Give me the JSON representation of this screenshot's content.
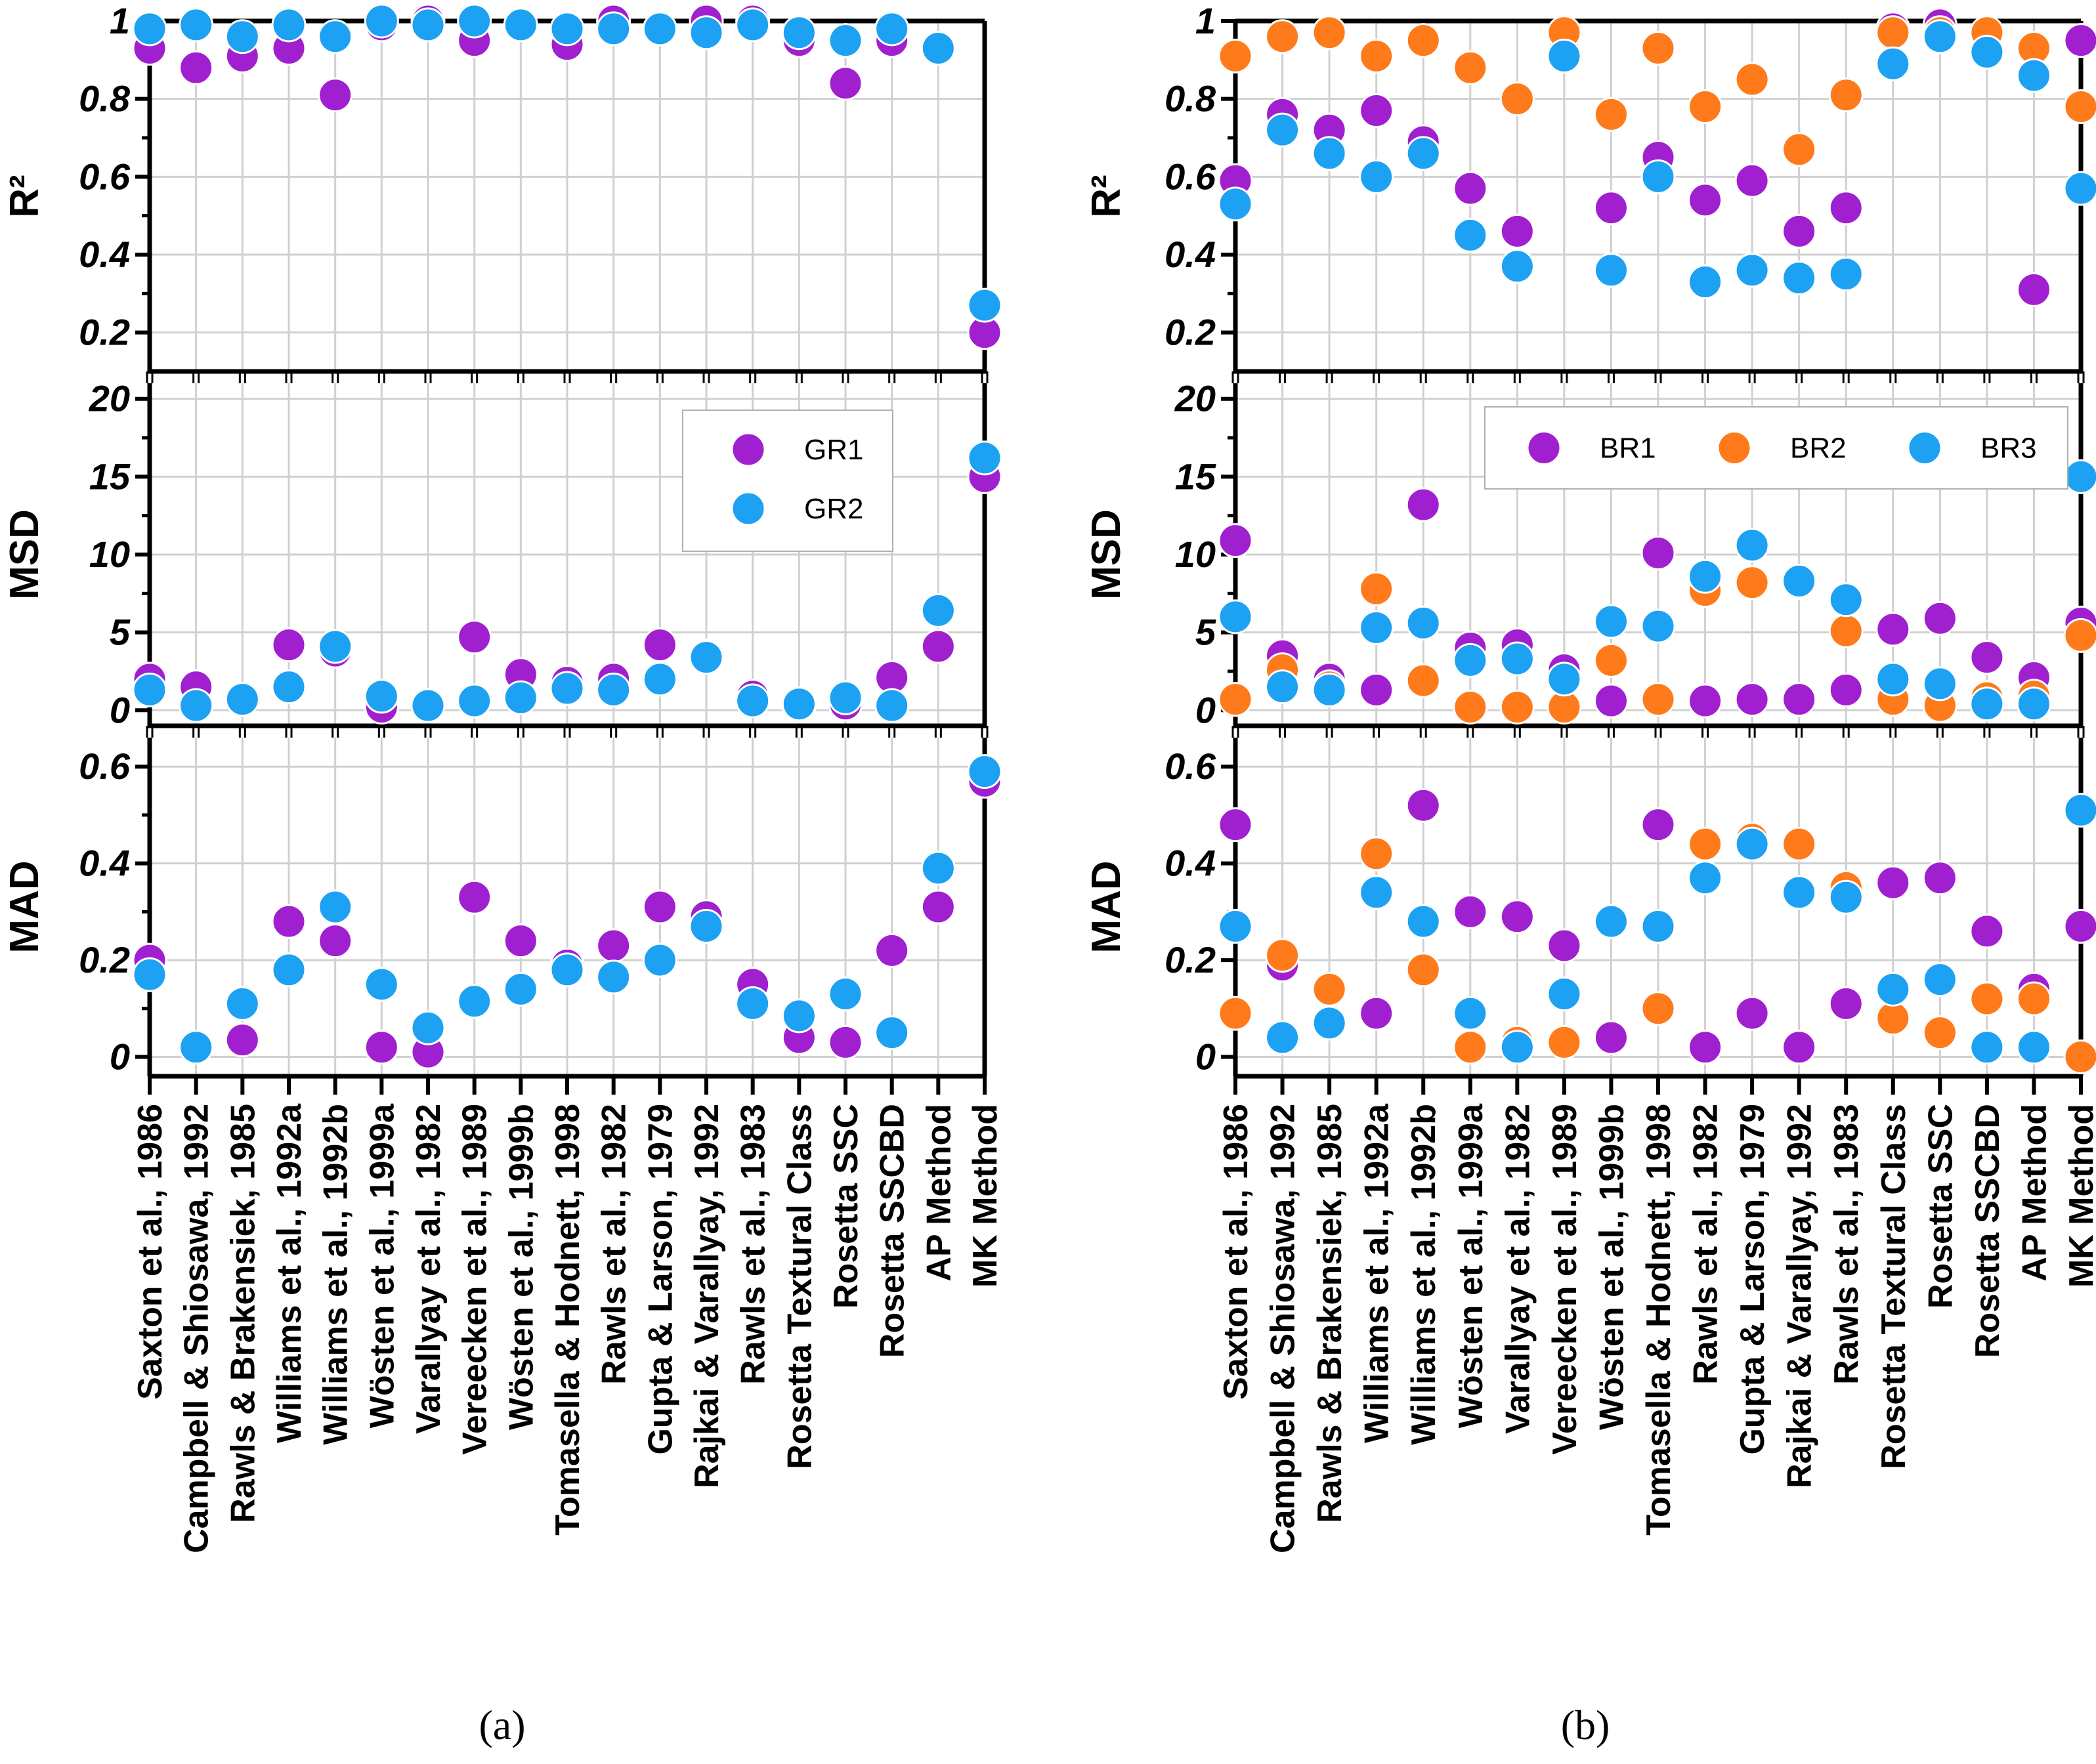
{
  "figure": {
    "panel_a_caption": "(a)",
    "panel_b_caption": "(b)"
  },
  "colors": {
    "GR1": "#a020d0",
    "GR2": "#1da1f2",
    "BR1": "#a020d0",
    "BR2": "#ff7a1a",
    "BR3": "#1da1f2"
  },
  "chart_data": [
    {
      "type": "scatter",
      "panel": "a",
      "categories": [
        "Saxton et al., 1986",
        "Campbell & Shiosawa, 1992",
        "Rawls & Brakensiek, 1985",
        "Williams et al., 1992a",
        "Williams et al., 1992b",
        "Wösten et al., 1999a",
        "Varallyay et al., 1982",
        "Vereecken et al., 1989",
        "Wösten et al., 1999b",
        "Tomasella & Hodnett, 1998",
        "Rawls et al., 1982",
        "Gupta & Larson, 1979",
        "Rajkai & Varallyay, 1992",
        "Rawls et al., 1983",
        "Rosetta Textural Class",
        "Rosetta SSC",
        "Rosetta SSCBD",
        "AP Method",
        "MK Method"
      ],
      "legend": [
        "GR1",
        "GR2"
      ],
      "subplots": [
        {
          "ylabel": "R²",
          "ylim": [
            0.1,
            1.0
          ],
          "yticks": [
            "0.2",
            "0.4",
            "0.6",
            "0.8",
            "1"
          ],
          "series": [
            {
              "name": "GR1",
              "values": [
                0.93,
                0.88,
                0.91,
                0.93,
                0.81,
                0.99,
                1.0,
                0.95,
                0.99,
                0.94,
                1.0,
                0.98,
                1.0,
                1.0,
                0.95,
                0.84,
                0.95,
                0.93,
                0.2
              ]
            },
            {
              "name": "GR2",
              "values": [
                0.98,
                0.99,
                0.96,
                0.99,
                0.96,
                1.0,
                0.99,
                1.0,
                0.99,
                0.98,
                0.98,
                0.98,
                0.97,
                0.99,
                0.97,
                0.95,
                0.98,
                0.93,
                0.27
              ]
            }
          ]
        },
        {
          "ylabel": "MSD",
          "ylim": [
            -1,
            21
          ],
          "yticks": [
            "0",
            "5",
            "10",
            "15",
            "20"
          ],
          "series": [
            {
              "name": "GR1",
              "values": [
                2.0,
                1.5,
                0.7,
                4.2,
                3.8,
                0.2,
                0.3,
                4.7,
                2.3,
                1.8,
                2.0,
                4.2,
                3.5,
                0.9,
                0.3,
                0.4,
                2.1,
                4.1,
                15.0
              ]
            },
            {
              "name": "GR2",
              "values": [
                1.3,
                0.3,
                0.7,
                1.5,
                4.1,
                0.9,
                0.3,
                0.6,
                0.8,
                1.4,
                1.3,
                2.0,
                3.4,
                0.6,
                0.4,
                0.8,
                0.3,
                6.4,
                16.2
              ]
            }
          ]
        },
        {
          "ylabel": "MAD",
          "ylim": [
            -0.04,
            0.66
          ],
          "yticks": [
            "0",
            "0.2",
            "0.4",
            "0.6"
          ],
          "series": [
            {
              "name": "GR1",
              "values": [
                0.2,
                0.02,
                0.035,
                0.28,
                0.24,
                0.02,
                0.01,
                0.33,
                0.24,
                0.19,
                0.23,
                0.31,
                0.29,
                0.15,
                0.04,
                0.03,
                0.22,
                0.31,
                0.57
              ]
            },
            {
              "name": "GR2",
              "values": [
                0.17,
                0.02,
                0.11,
                0.18,
                0.31,
                0.15,
                0.06,
                0.115,
                0.14,
                0.18,
                0.165,
                0.2,
                0.27,
                0.11,
                0.085,
                0.13,
                0.05,
                0.39,
                0.59
              ]
            }
          ]
        }
      ]
    },
    {
      "type": "scatter",
      "panel": "b",
      "categories": [
        "Saxton et al., 1986",
        "Campbell & Shiosawa, 1992",
        "Rawls & Brakensiek, 1985",
        "Williams et al., 1992a",
        "Williams et al., 1992b",
        "Wösten et al., 1999a",
        "Varallyay et al., 1982",
        "Vereecken et al., 1989",
        "Wösten et al., 1999b",
        "Tomasella & Hodnett, 1998",
        "Rawls et al., 1982",
        "Gupta & Larson, 1979",
        "Rajkai & Varallyay, 1992",
        "Rawls et al., 1983",
        "Rosetta Textural Class",
        "Rosetta SSC",
        "Rosetta SSCBD",
        "AP Method",
        "MK Method"
      ],
      "legend": [
        "BR1",
        "BR2",
        "BR3"
      ],
      "subplots": [
        {
          "ylabel": "R²",
          "ylim": [
            0.1,
            1.0
          ],
          "yticks": [
            "0.2",
            "0.4",
            "0.6",
            "0.8",
            "1"
          ],
          "series": [
            {
              "name": "BR1",
              "values": [
                0.59,
                0.76,
                0.72,
                0.77,
                0.69,
                0.57,
                0.46,
                0.92,
                0.52,
                0.65,
                0.54,
                0.59,
                0.46,
                0.52,
                0.98,
                0.99,
                0.92,
                0.31,
                0.95
              ]
            },
            {
              "name": "BR2",
              "values": [
                0.91,
                0.96,
                0.97,
                0.91,
                0.95,
                0.88,
                0.8,
                0.97,
                0.76,
                0.93,
                0.78,
                0.85,
                0.67,
                0.81,
                0.97,
                0.97,
                0.97,
                0.93,
                0.78
              ]
            },
            {
              "name": "BR3",
              "values": [
                0.53,
                0.72,
                0.66,
                0.6,
                0.66,
                0.45,
                0.37,
                0.91,
                0.36,
                0.6,
                0.33,
                0.36,
                0.34,
                0.35,
                0.89,
                0.96,
                0.92,
                0.86,
                0.57
              ]
            }
          ]
        },
        {
          "ylabel": "MSD",
          "ylim": [
            -1,
            21
          ],
          "yticks": [
            "0",
            "5",
            "10",
            "15",
            "20"
          ],
          "series": [
            {
              "name": "BR1",
              "values": [
                10.9,
                3.5,
                2.0,
                1.3,
                13.2,
                4.0,
                4.2,
                2.6,
                0.6,
                10.1,
                0.6,
                0.7,
                0.7,
                1.3,
                5.2,
                5.9,
                3.4,
                2.1,
                5.6
              ]
            },
            {
              "name": "BR2",
              "values": [
                0.7,
                2.6,
                1.5,
                7.8,
                1.9,
                0.2,
                0.2,
                0.2,
                3.2,
                0.7,
                7.7,
                8.2,
                8.2,
                5.1,
                0.7,
                0.3,
                0.8,
                0.9,
                4.8
              ]
            },
            {
              "name": "BR3",
              "values": [
                6.0,
                1.5,
                1.3,
                5.3,
                5.6,
                3.2,
                3.3,
                2.0,
                5.7,
                5.4,
                8.6,
                10.6,
                8.3,
                7.1,
                2.0,
                1.7,
                0.4,
                0.4,
                15.0
              ]
            }
          ]
        },
        {
          "ylabel": "MAD",
          "ylim": [
            -0.04,
            0.66
          ],
          "yticks": [
            "0",
            "0.2",
            "0.4",
            "0.6"
          ],
          "series": [
            {
              "name": "BR1",
              "values": [
                0.48,
                0.19,
                0.07,
                0.09,
                0.52,
                0.3,
                0.29,
                0.23,
                0.04,
                0.48,
                0.02,
                0.09,
                0.02,
                0.11,
                0.36,
                0.37,
                0.26,
                0.14,
                0.27
              ]
            },
            {
              "name": "BR2",
              "values": [
                0.09,
                0.21,
                0.14,
                0.42,
                0.18,
                0.02,
                0.03,
                0.03,
                0.28,
                0.1,
                0.44,
                0.45,
                0.44,
                0.35,
                0.08,
                0.05,
                0.12,
                0.12,
                0.0
              ]
            },
            {
              "name": "BR3",
              "values": [
                0.27,
                0.04,
                0.07,
                0.34,
                0.28,
                0.09,
                0.02,
                0.13,
                0.28,
                0.27,
                0.37,
                0.44,
                0.34,
                0.33,
                0.14,
                0.16,
                0.02,
                0.02,
                0.51
              ]
            }
          ]
        }
      ]
    }
  ]
}
